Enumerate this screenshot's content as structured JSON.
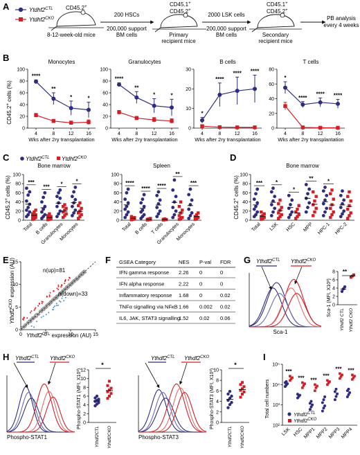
{
  "panelA": {
    "letter": "A",
    "legend_ctl": "Ytdhf2",
    "legend_ctl_sup": "CTL",
    "legend_cko": "Ytdhf2",
    "legend_cko_sup": "CKO",
    "donor_label": "CD45.2",
    "donor_sup": "+",
    "age_label": "8-12-week-old mice",
    "step1_top": "200 HSCs",
    "step1_bottom": "200,000 support BM cells",
    "recipient1_l1": "CD45.1",
    "recipient1_l2": "CD45.2",
    "recipient1_sup": "+",
    "recipient1_name": "Primary recipient mice",
    "step2_top": "2000 LSK cells",
    "step2_bottom": "200,000 support BM cells",
    "recipient2_l1": "CD45.1",
    "recipient2_l2": "CD45.2",
    "recipient2_sup": "+",
    "recipient2_name": "Secondary recipient mice",
    "readout": "PB analysis every 4 weeks"
  },
  "panelB": {
    "letter": "B",
    "ylabel": "CD45.2",
    "ylabel_sup": "+",
    "ylabel_tail": " cells (%)",
    "xlabel": "Wks after 2ry transplantation"
  },
  "panelC": {
    "letter": "C",
    "ylabel": "CD45.2",
    "ylabel_sup": "+",
    "ylabel_tail": " cells (%)",
    "legend_ctl": "Ytdhf2",
    "legend_ctl_sup": "CTL",
    "legend_cko": "Ytdhf2",
    "legend_cko_sup": "CKO"
  },
  "panelD": {
    "letter": "D",
    "ylabel": "CD45.2",
    "ylabel_sup": "+",
    "ylabel_tail": " cells (%)"
  },
  "panelE": {
    "letter": "E",
    "n_up": "n(up)=81",
    "n_down": "n(down)=33",
    "ylabel": "Ythdf2",
    "ylabel_sup": "CKO",
    "ylabel_tail": " expression (AU)",
    "xlabel": "Ythdf2",
    "xlabel_sup": "CTL",
    "xlabel_tail": " expression (AU)",
    "xticks": [
      "0",
      "5",
      "10",
      "15"
    ],
    "yticks": [
      "0",
      "5",
      "10",
      "15"
    ]
  },
  "panelF": {
    "letter": "F",
    "headers": [
      "GSEA Category",
      "NES",
      "P-val",
      "FDR"
    ],
    "rows": [
      [
        "IFN gamma response",
        "2.26",
        "0",
        "0"
      ],
      [
        "IFN alpha response",
        "2.22",
        "0",
        "0"
      ],
      [
        "Inflammatory response",
        "1.68",
        "0",
        "0.02"
      ],
      [
        "TNFα signalling via NFκB",
        "1.66",
        "0.002",
        "0.02"
      ],
      [
        "IL6, JAK, STAT3 signalling",
        "1.52",
        "0.02",
        "0.06"
      ]
    ]
  },
  "panelG": {
    "letter": "G",
    "ctl": "Ythdf2",
    "ctl_sup": "CTL",
    "cko": "Ythdf2",
    "cko_sup": "CKO",
    "xlabel": "Sca-1",
    "ylabel": "Sca-1 (MFI, X10³)",
    "sig": "**",
    "yticks": [
      "0",
      "2",
      "4",
      "6",
      "8"
    ]
  },
  "panelH": {
    "letter": "H",
    "ctl": "Ythdf2",
    "ctl_sup": "CTL",
    "cko": "Ythdf2",
    "cko_sup": "CKO",
    "xlabel1": "Phospho-STAT1",
    "xlabel2": "Phospho-STAT3",
    "ylabel1": "Phospho-STAT1 (MFI, X10³)",
    "ylabel2": "Phospho-STAT3 (MFI, X10³)",
    "sig1": "*",
    "sig2": "*"
  },
  "panelI": {
    "letter": "I",
    "ylabel": "Total cell numbers",
    "yticks": [
      "10²",
      "10³",
      "10⁴",
      "10⁵"
    ],
    "legend_ctl": "Ythdf2",
    "legend_ctl_sup": "CTL",
    "legend_cko": "Ythdf2",
    "legend_cko_sup": "CKO"
  },
  "colors": {
    "ctl": "#2d2c7e",
    "cko": "#d21f26",
    "gray": "#9a9a9a",
    "up": "#e41a1c",
    "down": "#4a90c8"
  },
  "chart_data": [
    {
      "panel": "B",
      "type": "line",
      "x": [
        4,
        8,
        12,
        16
      ],
      "plots": [
        {
          "title": "Monocytes",
          "ylim": [
            0,
            100
          ],
          "yticks": [
            0,
            20,
            40,
            60,
            80,
            100
          ],
          "series": [
            {
              "name": "Ytdhf2 CTL",
              "values": [
                79,
                50,
                34,
                31
              ],
              "err": [
                3,
                10,
                12,
                13
              ]
            },
            {
              "name": "Ytdhf2 CKO",
              "values": [
                22,
                12,
                9,
                10
              ],
              "err": [
                3,
                3,
                3,
                4
              ]
            }
          ],
          "sig": [
            "****",
            "**",
            "*",
            "*"
          ]
        },
        {
          "title": "Granulocytes",
          "ylim": [
            0,
            100
          ],
          "yticks": [
            0,
            20,
            40,
            60,
            80,
            100
          ],
          "series": [
            {
              "name": "Ytdhf2 CTL",
              "values": [
                74,
                52,
                38,
                35
              ],
              "err": [
                3,
                10,
                12,
                14
              ]
            },
            {
              "name": "Ytdhf2 CKO",
              "values": [
                27,
                17,
                14,
                12
              ],
              "err": [
                3,
                3,
                4,
                4
              ]
            }
          ],
          "sig": [
            "****",
            "**",
            "*",
            "*"
          ]
        },
        {
          "title": "B cells",
          "ylim": [
            0,
            30
          ],
          "yticks": [
            0,
            10,
            20,
            30
          ],
          "series": [
            {
              "name": "Ytdhf2 CTL",
              "values": [
                4,
                17,
                19,
                20
              ],
              "err": [
                1.5,
                6,
                7,
                7
              ]
            },
            {
              "name": "Ytdhf2 CKO",
              "values": [
                1,
                0.5,
                0.4,
                0.4
              ],
              "err": [
                0.3,
                0.2,
                0.2,
                0.2
              ]
            }
          ],
          "sig": [
            "*",
            "****",
            "****",
            "****"
          ]
        },
        {
          "title": "T cells",
          "ylim": [
            0,
            80
          ],
          "yticks": [
            0,
            20,
            40,
            60,
            80
          ],
          "series": [
            {
              "name": "Ytdhf2 CTL",
              "values": [
                55,
                32,
                35,
                33
              ],
              "err": [
                8,
                4,
                6,
                6
              ]
            },
            {
              "name": "Ytdhf2 CKO",
              "values": [
                30,
                1,
                0.5,
                0.5
              ],
              "err": [
                5,
                0.5,
                0.3,
                0.3
              ]
            }
          ],
          "sig": [
            "*",
            "****",
            "****",
            "****"
          ]
        }
      ]
    },
    {
      "panel": "C",
      "type": "scatter",
      "groups": [
        {
          "title": "Bone marrow",
          "ylim": [
            0,
            100
          ],
          "yticks": [
            0,
            20,
            40,
            60,
            80,
            100
          ],
          "categories": [
            "Total",
            "B cells",
            "Granulocytes",
            "Monocytes"
          ],
          "ctl": [
            [
              8,
              12,
              18,
              22,
              28,
              35,
              42,
              55,
              62,
              70
            ],
            [
              4,
              8,
              12,
              18,
              24,
              30,
              40,
              50,
              60
            ],
            [
              8,
              14,
              20,
              30,
              38,
              48,
              52,
              60,
              66
            ],
            [
              10,
              16,
              22,
              30,
              38,
              45,
              52,
              62,
              72
            ]
          ],
          "cko": [
            [
              2,
              4,
              6,
              8,
              10,
              12,
              14,
              18,
              22
            ],
            [
              1,
              2,
              3,
              4,
              6,
              8,
              10,
              14
            ],
            [
              6,
              10,
              14,
              18,
              22,
              26,
              30,
              34
            ],
            [
              4,
              8,
              12,
              16,
              20,
              26,
              32,
              38
            ]
          ],
          "sig": [
            "***",
            "***",
            "*",
            "*"
          ]
        },
        {
          "title": "Spleen",
          "ylim": [
            0,
            100
          ],
          "yticks": [
            0,
            20,
            40,
            60,
            80,
            100
          ],
          "categories": [
            "Total",
            "B cells",
            "T cells",
            "Granulocytes",
            "Monocytes"
          ],
          "ctl": [
            [
              6,
              12,
              18,
              24,
              30,
              38,
              46,
              60,
              68
            ],
            [
              4,
              8,
              12,
              18,
              22,
              30,
              38,
              46,
              56
            ],
            [
              8,
              14,
              20,
              28,
              36,
              44,
              54,
              62
            ],
            [
              6,
              12,
              20,
              28,
              40,
              52,
              66,
              88
            ],
            [
              4,
              10,
              16,
              24,
              34,
              44,
              56,
              68
            ]
          ],
          "cko": [
            [
              1,
              2,
              3,
              4,
              5,
              6,
              8
            ],
            [
              0.5,
              1,
              1.5,
              2,
              3,
              4
            ],
            [
              0.5,
              1,
              1.5,
              2,
              3
            ],
            [
              2,
              4,
              6,
              10,
              16,
              22,
              30,
              40
            ],
            [
              2,
              4,
              6,
              8,
              12,
              16
            ]
          ],
          "sig": [
            "****",
            "****",
            "****",
            "**",
            "***"
          ]
        }
      ]
    },
    {
      "panel": "D",
      "type": "scatter",
      "title": "Bone marrow",
      "ylim": [
        0,
        100
      ],
      "yticks": [
        0,
        20,
        40,
        60,
        80,
        100
      ],
      "categories": [
        "Total",
        "LSK",
        "HSC",
        "MPP",
        "HPC-1",
        "HPC-2"
      ],
      "ctl": [
        [
          8,
          12,
          18,
          24,
          30,
          38,
          46,
          58,
          68
        ],
        [
          10,
          18,
          26,
          34,
          42,
          52,
          62,
          70
        ],
        [
          6,
          12,
          18,
          26,
          34,
          44,
          54
        ],
        [
          18,
          28,
          38,
          48,
          58,
          68,
          78
        ],
        [
          10,
          18,
          26,
          36,
          44,
          54,
          64,
          72
        ],
        [
          8,
          14,
          20,
          28,
          36,
          44,
          54,
          64
        ]
      ],
      "cko": [
        [
          2,
          4,
          6,
          8,
          10,
          14,
          18
        ],
        [
          4,
          8,
          12,
          16,
          22,
          28,
          36,
          44
        ],
        [
          4,
          8,
          12,
          18,
          24,
          32
        ],
        [
          10,
          18,
          26,
          34,
          42,
          52,
          62
        ],
        [
          6,
          12,
          18,
          26,
          34,
          46,
          58,
          66
        ],
        [
          4,
          10,
          16,
          24,
          32,
          42,
          52,
          62
        ]
      ],
      "sig": [
        "***",
        "*",
        "*",
        "**",
        "*",
        ""
      ]
    },
    {
      "panel": "G",
      "type": "scatter",
      "categories": [
        "Ythdf2 CTL",
        "Ythdf2 CKO"
      ],
      "ylim": [
        0,
        8
      ],
      "ctl": [
        3.2,
        3.8,
        4.3
      ],
      "cko": [
        6.6,
        6.9,
        7.2
      ]
    },
    {
      "panel": "H",
      "type": "scatter",
      "plots": [
        {
          "ylabel": "Phospho-STAT1 (MFI, X10³)",
          "ylim": [
            0,
            12
          ],
          "yticks": [
            0,
            2,
            4,
            6,
            8,
            10,
            12
          ],
          "ctl": [
            3.8,
            4.2,
            4.5,
            4.8,
            5.0,
            5.3,
            5.6,
            6.0
          ],
          "cko": [
            5.5,
            6.0,
            6.6,
            7.0,
            7.4,
            7.8,
            8.4,
            9.4
          ]
        },
        {
          "ylabel": "Phospho-STAT3 (MFI, X10³)",
          "ylim": [
            0,
            10
          ],
          "yticks": [
            0,
            2,
            4,
            6,
            8,
            10
          ],
          "ctl": [
            2.8,
            3.4,
            3.8,
            4.2,
            4.6,
            5.0,
            5.4,
            5.9
          ],
          "cko": [
            4.8,
            5.4,
            5.8,
            6.1,
            6.4,
            6.8,
            7.2,
            7.6
          ]
        }
      ]
    },
    {
      "panel": "I",
      "type": "scatter",
      "yscale": "log",
      "ylim": [
        100,
        100000
      ],
      "categories": [
        "LSK",
        "HSC",
        "MPP1",
        "MPP2",
        "MPP3",
        "MPP4"
      ],
      "ctl": [
        [
          8000,
          9500,
          11000,
          12500,
          14000
        ],
        [
          2200,
          2600,
          3000,
          3400
        ],
        [
          600,
          800,
          1000,
          1200,
          1500
        ],
        [
          500,
          700,
          900,
          1300,
          1800,
          2500
        ],
        [
          1800,
          2600,
          3500,
          4500,
          6000
        ],
        [
          2500,
          3200,
          4000,
          5000,
          6000
        ]
      ],
      "cko": [
        [
          16000,
          19000,
          22000,
          26000
        ],
        [
          7000,
          9000,
          11000,
          12500
        ],
        [
          5000,
          7000,
          8500,
          10000
        ],
        [
          10000,
          12000,
          14000,
          16000
        ],
        [
          20000,
          25000,
          30000,
          35000
        ],
        [
          18000,
          22000,
          26000,
          30000
        ]
      ],
      "sig": [
        "***",
        "***",
        "***",
        "***",
        "***",
        "***"
      ]
    },
    {
      "panel": "E",
      "type": "scatter",
      "xlim": [
        0,
        15
      ],
      "ylim": [
        0,
        15
      ]
    }
  ]
}
